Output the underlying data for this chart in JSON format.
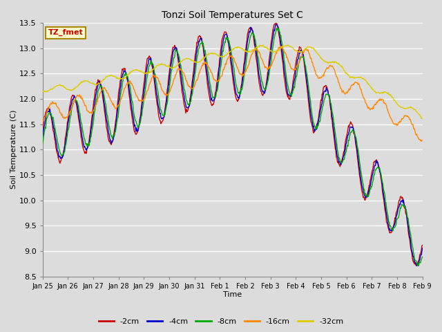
{
  "title": "Tonzi Soil Temperatures Set C",
  "xlabel": "Time",
  "ylabel": "Soil Temperature (C)",
  "ylim": [
    8.5,
    13.5
  ],
  "plot_bg_color": "#dcdcdc",
  "grid_color": "#ffffff",
  "legend_label": "TZ_fmet",
  "legend_bg": "#ffffcc",
  "legend_border": "#aa8800",
  "series_colors": {
    "-2cm": "#cc0000",
    "-4cm": "#0000cc",
    "-8cm": "#00aa00",
    "-16cm": "#ff8800",
    "-32cm": "#ddcc00"
  },
  "xtick_labels": [
    "Jan 25",
    "Jan 26",
    "Jan 27",
    "Jan 28",
    "Jan 29",
    "Jan 30",
    "Jan 31",
    "Feb 1",
    "Feb 2",
    "Feb 3",
    "Feb 4",
    "Feb 5",
    "Feb 6",
    "Feb 7",
    "Feb 8",
    "Feb 9"
  ],
  "ytick_labels": [
    "8.5",
    "9.0",
    "9.5",
    "10.0",
    "10.5",
    "11.0",
    "11.5",
    "12.0",
    "12.5",
    "13.0",
    "13.5"
  ],
  "ytick_values": [
    8.5,
    9.0,
    9.5,
    10.0,
    10.5,
    11.0,
    11.5,
    12.0,
    12.5,
    13.0,
    13.5
  ]
}
